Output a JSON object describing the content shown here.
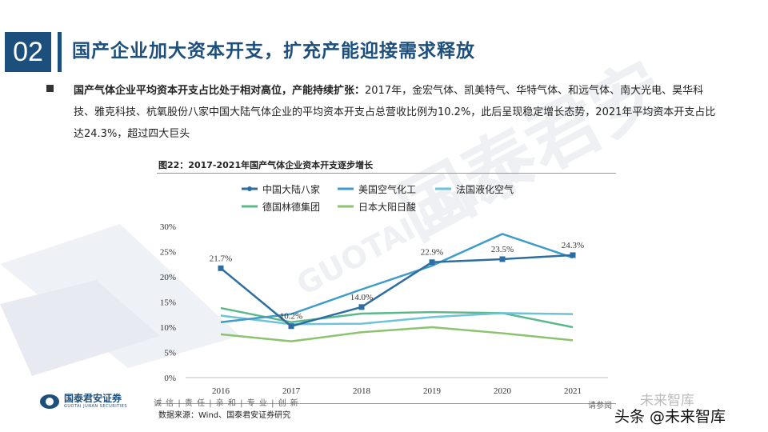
{
  "section": {
    "number": "02",
    "title": "国产企业加大资本开支，扩充产能迎接需求释放"
  },
  "paragraph": {
    "lead": "国产气体企业平均资本开支占比处于相对高位，产能持续扩张：",
    "body": "2017年，金宏气体、凯美特气、华特气体、和远气体、南大光电、昊华科技、雅克科技、杭氧股份八家中国大陆气体企业的平均资本开支占总营收比例为10.2%，此后呈现稳定增长态势，2021年平均资本开支占比达24.3%，超过四大巨头"
  },
  "figure": {
    "title": "图22：2017-2021年国产气体企业资本开支逐步增长",
    "source": "数据来源：Wind、国泰君安证券研究"
  },
  "chart_data": {
    "type": "line",
    "x": [
      "2016",
      "2017",
      "2018",
      "2019",
      "2020",
      "2021"
    ],
    "ylim": [
      0,
      30
    ],
    "yticks": [
      "0%",
      "5%",
      "10%",
      "15%",
      "20%",
      "25%",
      "30%"
    ],
    "legend_position": "top",
    "series": [
      {
        "name": "中国大陆八家",
        "color": "#2e6da0",
        "values": [
          21.7,
          10.2,
          14.0,
          22.9,
          23.5,
          24.3
        ],
        "labels": [
          "21.7%",
          "10.2%",
          "14.0%",
          "22.9%",
          "23.5%",
          "24.3%"
        ],
        "marker": true
      },
      {
        "name": "美国空气化工",
        "color": "#3f9cc9",
        "values": [
          11.0,
          12.6,
          17.5,
          22.2,
          28.5,
          23.8
        ]
      },
      {
        "name": "法国液化空气",
        "color": "#6ec3d6",
        "values": [
          12.3,
          10.6,
          10.7,
          12.0,
          12.8,
          12.6
        ]
      },
      {
        "name": "德国林德集团",
        "color": "#5cb88a",
        "values": [
          13.8,
          11.0,
          12.7,
          13.0,
          12.8,
          10.0
        ]
      },
      {
        "name": "日本大阳日酸",
        "color": "#8dc26f",
        "values": [
          8.6,
          7.2,
          9.0,
          10.0,
          8.8,
          7.4
        ]
      }
    ]
  },
  "footer": {
    "logo_name": "国泰君安证券",
    "logo_sub": "GUOTAI JUNAN SECURITIES",
    "motto": "诚 信 | 责 任 | 亲 和 | 专 业 | 创 新",
    "disclaimer": "请参阅",
    "watermark_top": "未来智库",
    "watermark_bottom": "头条 @未来智库"
  },
  "watermark": {
    "cn": "国泰君安",
    "en": "GUOTAI JUNAN"
  }
}
